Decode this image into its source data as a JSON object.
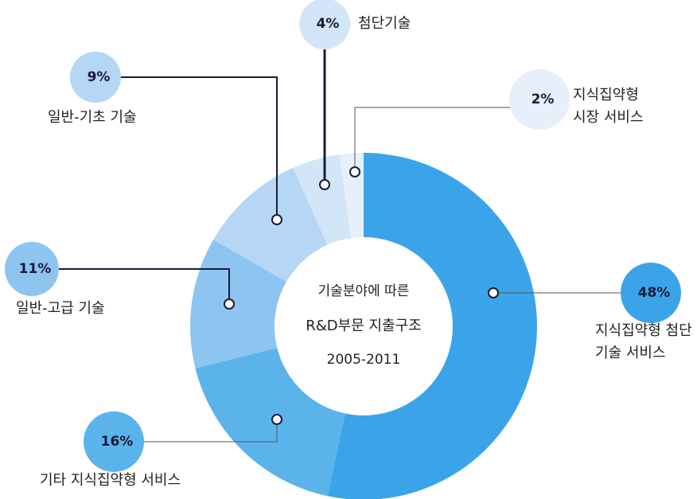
{
  "chart_data": {
    "type": "donut",
    "center_text": [
      "기술분야에 따른",
      "R&D부문 지출구조",
      "2005-2011"
    ],
    "categories": [
      "지식집약형 첨단\n기술 서비스",
      "기타 지식집약형 서비스",
      "일반-고급 기술",
      "일반-기초 기술",
      "첨단기술",
      "지식집약형\n시장 서비스"
    ],
    "values": [
      48,
      16,
      11,
      9,
      4,
      2
    ],
    "value_labels": [
      "48%",
      "16%",
      "11%",
      "9%",
      "4%",
      "2%"
    ],
    "colors": [
      "#3ba4e8",
      "#5bb3ec",
      "#8ec5f0",
      "#b5d6f5",
      "#d3e6f8",
      "#e6f0fb"
    ]
  }
}
